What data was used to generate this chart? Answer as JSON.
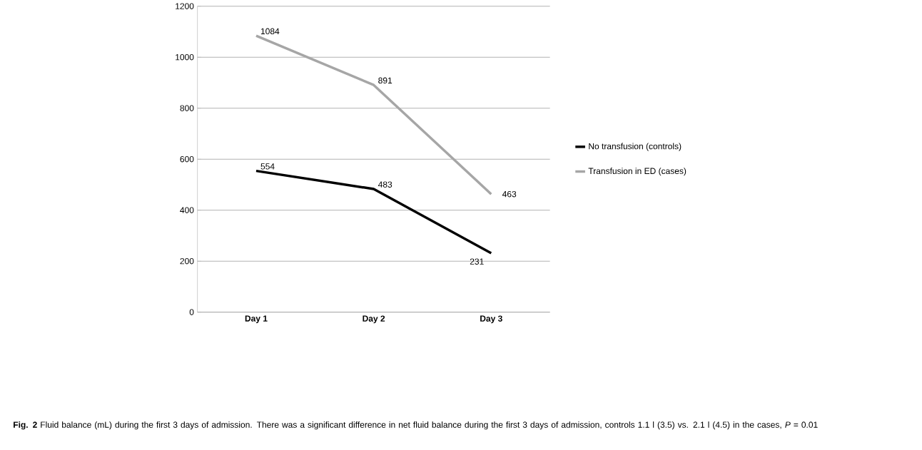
{
  "chart_data": {
    "type": "line",
    "categories": [
      "Day 1",
      "Day 2",
      "Day 3"
    ],
    "series": [
      {
        "name": "No transfusion (controls)",
        "color": "#000000",
        "values": [
          554,
          483,
          231
        ]
      },
      {
        "name": "Transfusion in ED (cases)",
        "color": "#a6a6a6",
        "values": [
          1084,
          891,
          463
        ]
      }
    ],
    "ylim": [
      0,
      1200
    ],
    "yticks": [
      0,
      200,
      400,
      600,
      800,
      1000,
      1200
    ],
    "grid": "y",
    "legend": "right",
    "data_labels": true,
    "marker": "none",
    "annotations": [
      "**Fig. 2** Fluid balance (mL) during the first 3 days of admission. There was a significant difference in net fluid balance during the first 3 days of admission, controls 1.1 l (3.5) vs. 2.1 l (4.5) in the cases, *P* = 0.01"
    ]
  }
}
